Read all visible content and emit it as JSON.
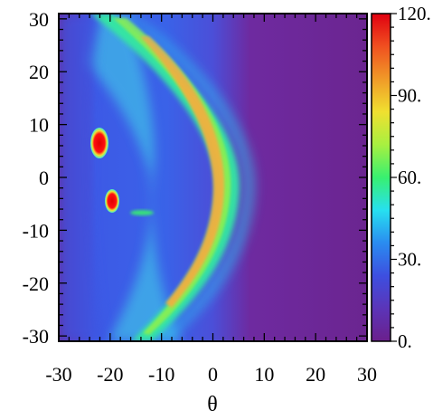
{
  "chart_data": {
    "type": "heatmap",
    "title": "",
    "xlabel": "θ",
    "ylabel": "",
    "xlim": [
      -30,
      30
    ],
    "ylim": [
      -31,
      31
    ],
    "xticks": [
      "-30",
      "-20",
      "-10",
      "0",
      "10",
      "20",
      "30"
    ],
    "yticks": [
      "30",
      "20",
      "10",
      "0",
      "-10",
      "-20",
      "-30"
    ],
    "colorbar": {
      "range": [
        0,
        120
      ],
      "ticks": [
        "120.",
        "90.",
        "60.",
        "30.",
        "0."
      ],
      "colors": [
        "#6b1f8c",
        "#5b35b8",
        "#3d4fe0",
        "#2a8cf0",
        "#27e0f0",
        "#38f070",
        "#a8f040",
        "#f0e030",
        "#f09a28",
        "#f05020",
        "#e00010"
      ]
    },
    "features": [
      {
        "name": "outer-shock-arc",
        "value": 60
      },
      {
        "name": "inner-shock-arc",
        "value": 90
      },
      {
        "name": "hot-spot-upper",
        "value": 120
      },
      {
        "name": "hot-spot-lower",
        "value": 120
      }
    ]
  }
}
